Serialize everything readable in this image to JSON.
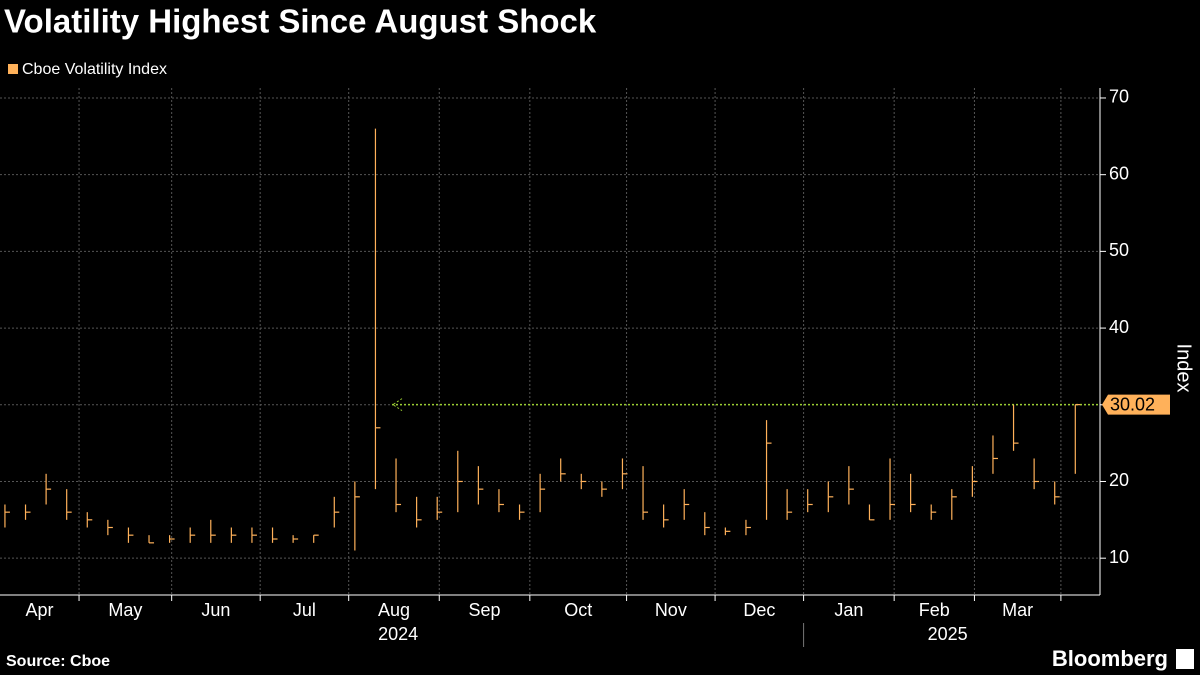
{
  "chart_data": {
    "type": "ohlc",
    "title": "Volatility Highest Since August Shock",
    "source": "Source: Cboe",
    "brand": "Bloomberg",
    "y_axis_label": "Index",
    "categories": [
      null,
      null,
      null,
      null,
      null,
      null,
      null,
      null,
      null,
      null,
      null,
      null,
      null,
      null,
      null,
      null,
      null,
      null,
      null,
      null,
      null,
      null,
      null,
      null,
      null,
      null,
      null,
      null,
      null,
      null,
      null,
      null,
      null,
      null,
      null,
      null,
      null,
      null,
      null,
      null,
      null,
      null,
      null,
      null,
      null,
      null,
      null,
      null,
      null,
      null,
      null,
      null,
      null
    ],
    "series": [
      {
        "name": "Cboe Volatility Index",
        "color": "#ffb15a",
        "high": [
          17,
          17,
          21,
          19,
          16,
          15,
          14,
          13,
          13,
          14,
          15,
          14,
          14,
          14,
          13,
          13,
          18,
          20,
          66,
          23,
          18,
          18,
          24,
          22,
          19,
          17,
          21,
          23,
          21,
          20,
          23,
          22,
          17,
          19,
          16,
          14,
          15,
          28,
          19,
          19,
          20,
          22,
          17,
          23,
          21,
          17,
          19,
          22,
          26,
          30,
          23,
          20,
          30.02
        ],
        "low": [
          14,
          15,
          17,
          15,
          14,
          13,
          12,
          12,
          12,
          12,
          12,
          12,
          12,
          12,
          12,
          12,
          14,
          11,
          19,
          16,
          14,
          15,
          16,
          17,
          16,
          15,
          16,
          20,
          19,
          18,
          19,
          15,
          14,
          15,
          13,
          13,
          13,
          15,
          15,
          16,
          16,
          17,
          15,
          15,
          16,
          15,
          15,
          18,
          21,
          24,
          19,
          17,
          21
        ],
        "close": [
          16,
          16,
          19,
          16,
          15,
          14,
          13,
          12,
          12.5,
          13,
          13,
          13,
          13,
          12.5,
          12.5,
          13,
          16,
          18,
          27,
          17,
          15,
          16,
          20,
          19,
          17,
          16,
          19,
          21,
          20,
          19,
          21,
          16,
          15,
          17,
          14,
          13.5,
          14,
          25,
          16,
          17,
          18,
          19,
          15,
          17,
          17,
          16,
          18,
          20,
          23,
          25,
          20,
          18,
          30.02
        ]
      }
    ],
    "reference_value": 30.02,
    "reference_color": "#9acd32",
    "xlim": [
      -0.24,
      53.2
    ],
    "xticks": [
      {
        "value": -0.4,
        "label": "Apr"
      },
      {
        "value": 3.6,
        "label": "May"
      },
      {
        "value": 8.1,
        "label": "Jun"
      },
      {
        "value": 12.4,
        "label": "Jul"
      },
      {
        "value": 16.7,
        "label": "Aug"
      },
      {
        "value": 21.1,
        "label": "Sep"
      },
      {
        "value": 25.5,
        "label": "Oct"
      },
      {
        "value": 30.2,
        "label": "Nov"
      },
      {
        "value": 34.5,
        "label": "Dec"
      },
      {
        "value": 38.8,
        "label": "Jan"
      },
      {
        "value": 43.2,
        "label": "Feb"
      },
      {
        "value": 47.1,
        "label": "Mar"
      },
      {
        "value": 51.3,
        "label": null
      }
    ],
    "year_labels": [
      {
        "value": 19.1,
        "label": "2024"
      },
      {
        "value": 45.8,
        "label": "2025"
      }
    ],
    "ylim": [
      5.2,
      71.3
    ],
    "yticks": [
      10,
      20,
      30,
      40,
      50,
      60,
      70
    ],
    "grid": true
  }
}
